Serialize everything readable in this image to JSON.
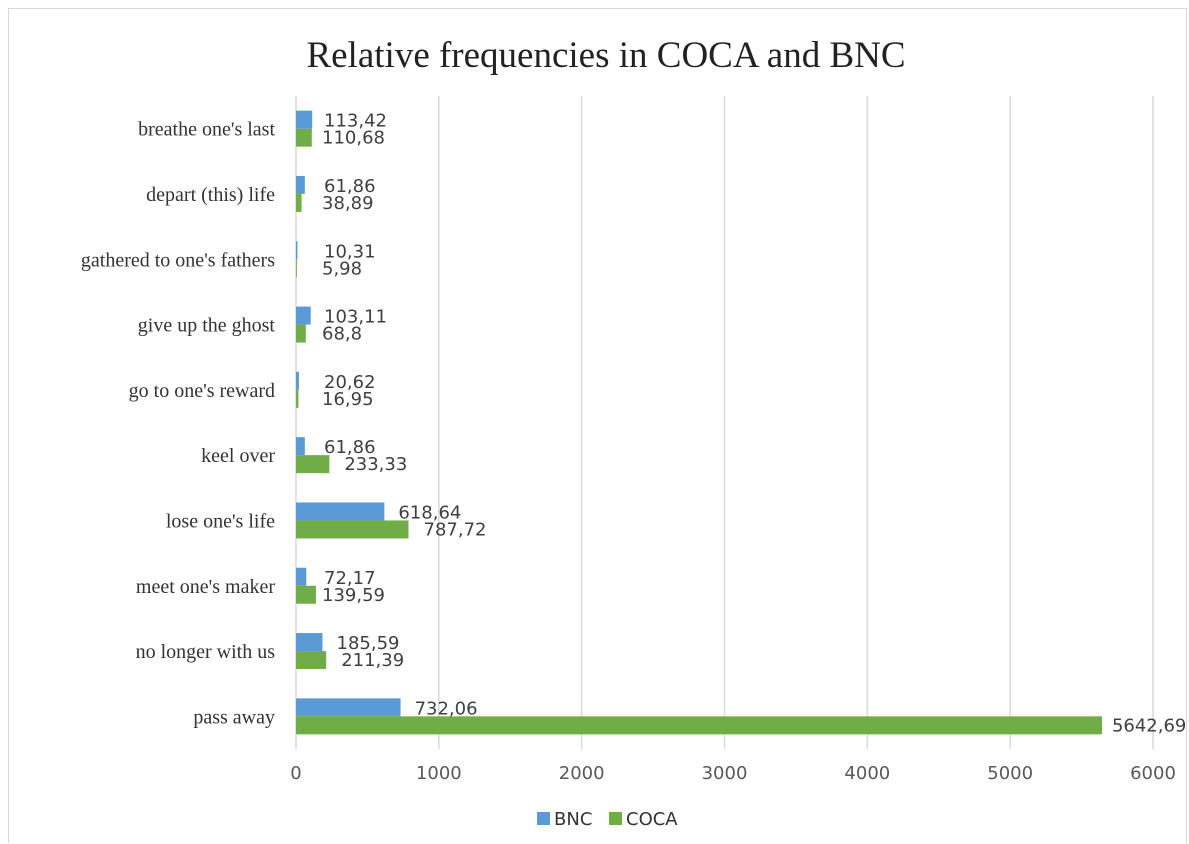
{
  "chart_data": {
    "type": "bar",
    "orientation": "horizontal",
    "title": "Relative frequencies in COCA and BNC",
    "categories": [
      "breathe one's last",
      "depart (this) life",
      "gathered to one's fathers",
      "give up the ghost",
      "go to one's reward",
      "keel over",
      "lose one's life",
      "meet one's maker",
      "no longer with us",
      "pass away"
    ],
    "series": [
      {
        "name": "BNC",
        "color": "#5b9bd5",
        "values": [
          113.42,
          61.86,
          10.31,
          103.11,
          20.62,
          61.86,
          618.64,
          72.17,
          185.59,
          732.06
        ],
        "labels": [
          "113,42",
          "61,86",
          "10,31",
          "103,11",
          "20,62",
          "61,86",
          "618,64",
          "72,17",
          "185,59",
          "732,06"
        ]
      },
      {
        "name": "COCA",
        "color": "#70ad47",
        "values": [
          110.68,
          38.89,
          5.98,
          68.8,
          16.95,
          233.33,
          787.72,
          139.59,
          211.39,
          5642.69
        ],
        "labels": [
          "110,68",
          "38,89",
          "5,98",
          "68,8",
          "16,95",
          "233,33",
          "787,72",
          "139,59",
          "211,39",
          "5642,69"
        ]
      }
    ],
    "xlim": [
      0,
      6000
    ],
    "xticks": [
      0,
      1000,
      2000,
      3000,
      4000,
      5000,
      6000
    ],
    "grid": true,
    "legend_position": "bottom"
  }
}
